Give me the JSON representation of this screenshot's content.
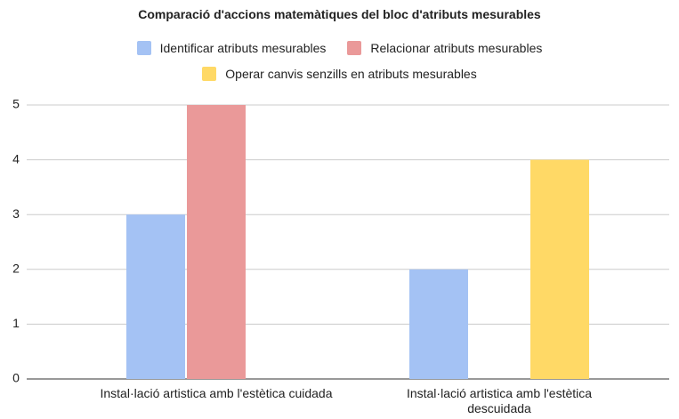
{
  "chart_data": {
    "type": "bar",
    "title": "Comparació d'accions matemàtiques del bloc d'atributs mesurables",
    "categories": [
      "Instal·lació artistica amb l'estètica cuidada",
      "Instal·lació artistica amb l'estètica descuidada"
    ],
    "series": [
      {
        "name": "Identificar atributs mesurables",
        "color": "#a4c2f4",
        "values": [
          3,
          2
        ]
      },
      {
        "name": "Relacionar atributs mesurables",
        "color": "#ea9999",
        "values": [
          5,
          0
        ]
      },
      {
        "name": "Operar canvis senzills en atributs mesurables",
        "color": "#ffd966",
        "values": [
          0,
          4
        ]
      }
    ],
    "ylim": [
      0,
      5
    ],
    "yticks": [
      0,
      1,
      2,
      3,
      4,
      5
    ],
    "grid": true,
    "legend": "top"
  }
}
